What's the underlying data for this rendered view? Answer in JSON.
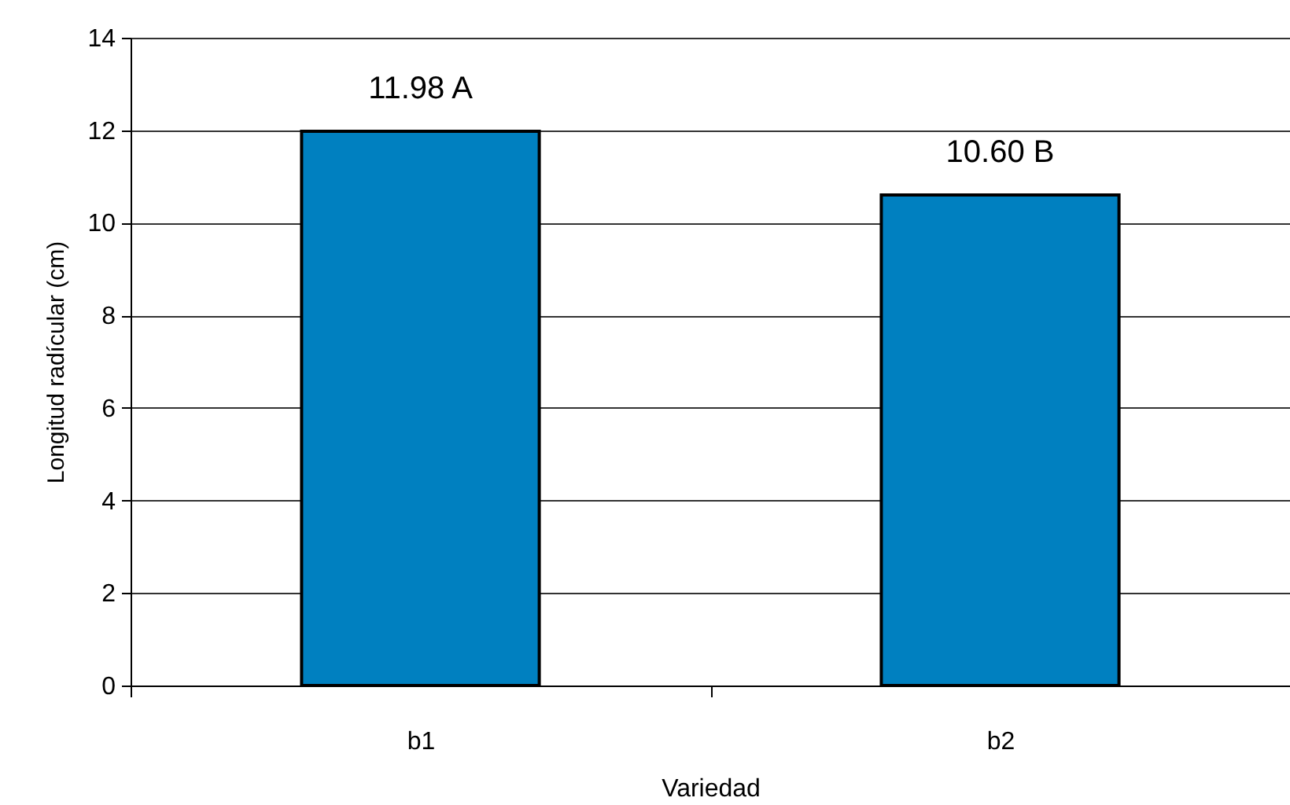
{
  "chart_data": {
    "type": "bar",
    "xlabel": "Variedad",
    "ylabel": "Longitud radícular (cm)",
    "categories": [
      "b1",
      "b2"
    ],
    "values": [
      11.98,
      10.6
    ],
    "color": "#0080c0",
    "value_labels": [
      "11.98 A",
      "10.60 B"
    ],
    "ylim": [
      0,
      14
    ],
    "yticks": [
      0,
      2,
      4,
      6,
      8,
      10,
      12,
      14
    ],
    "grid": "y"
  }
}
